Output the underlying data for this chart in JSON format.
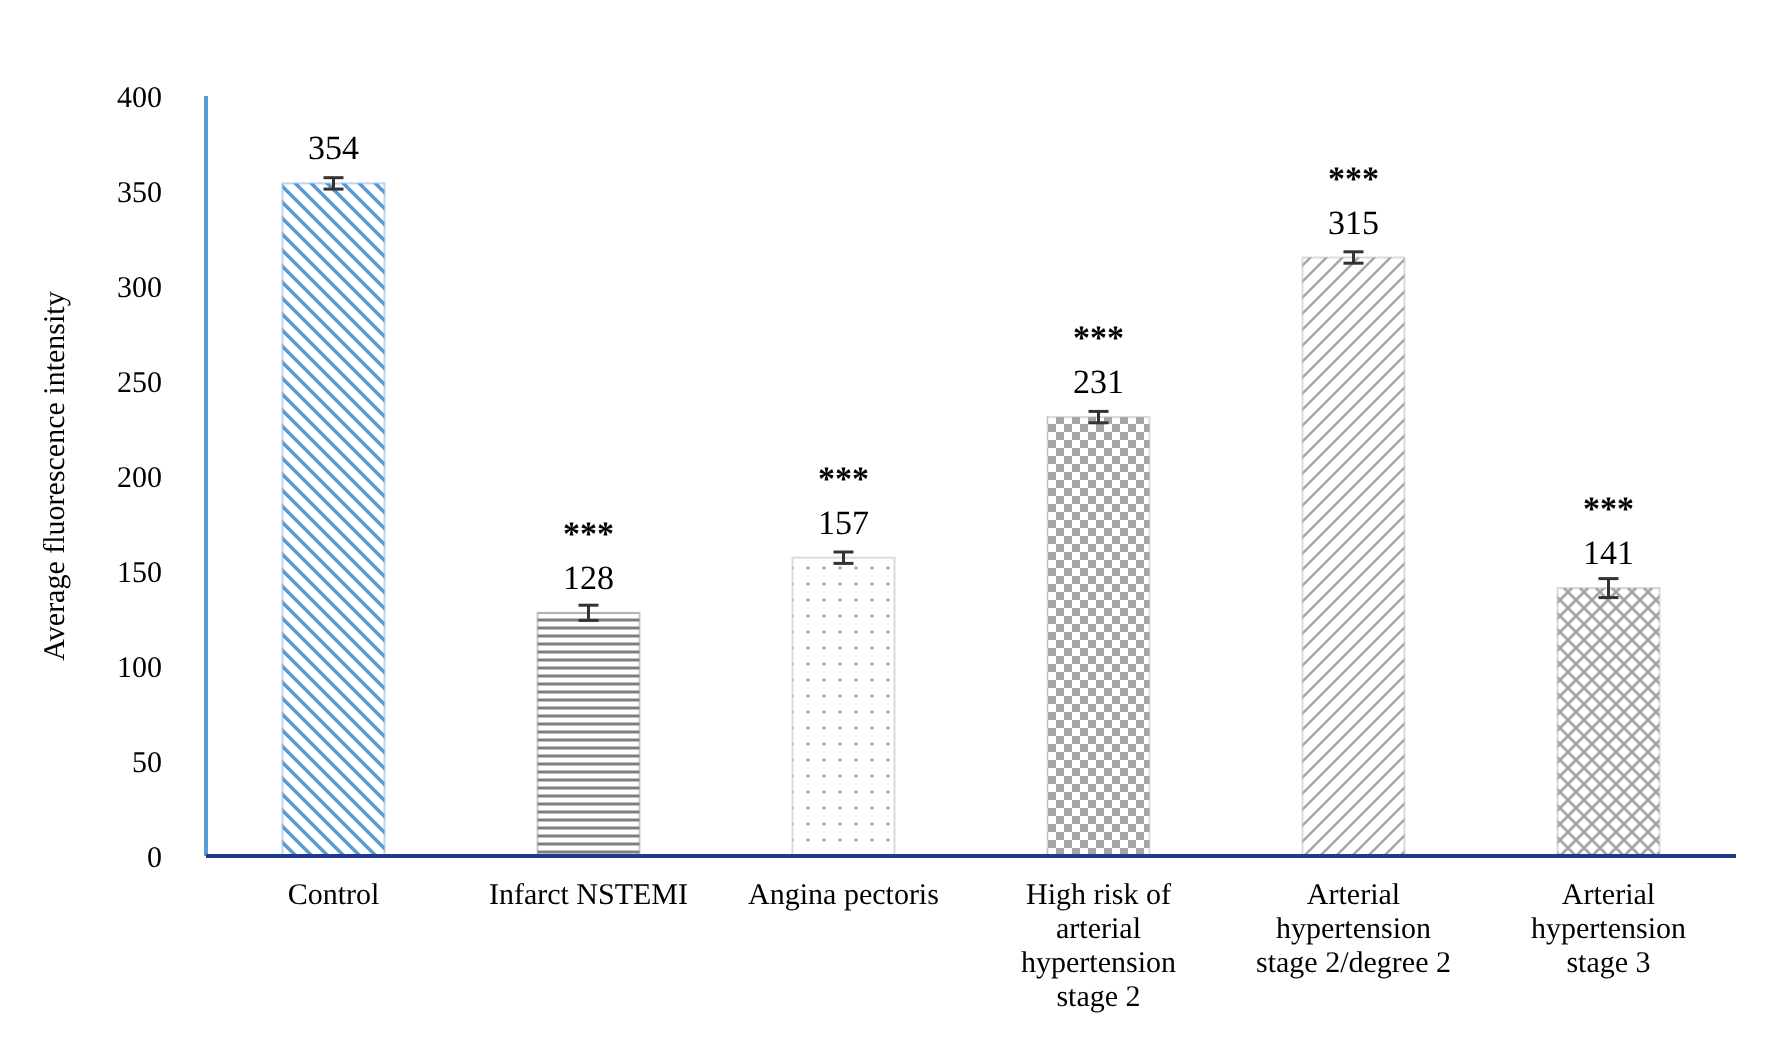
{
  "chart_data": {
    "type": "bar",
    "ylabel": "Average fluorescence intensity",
    "categories": [
      "Control",
      "Infarct NSTEMI",
      "Angina pectoris",
      "High risk of arterial hypertension stage 2",
      "Arterial hypertension stage 2/degree 2",
      "Arterial hypertension stage 3"
    ],
    "values": [
      354,
      128,
      157,
      231,
      315,
      141
    ],
    "errors": [
      3,
      4,
      3,
      3,
      3,
      5
    ],
    "colors": [
      "#5b9bd5",
      "#7f7f7f",
      "#a6a6a6",
      "#a6a6a6",
      "#a6a6a6",
      "#a6a6a6"
    ],
    "data_labels": true,
    "ylim": [
      0,
      400
    ],
    "yticks": [
      0,
      50,
      100,
      150,
      200,
      250,
      300,
      350,
      400
    ],
    "grid": false,
    "annotations": [
      {
        "text": "***",
        "x": "Infarct NSTEMI",
        "y": 128
      },
      {
        "text": "***",
        "x": "Angina pectoris",
        "y": 157
      },
      {
        "text": "***",
        "x": "High risk of arterial hypertension stage 2",
        "y": 231
      },
      {
        "text": "***",
        "x": "Arterial hypertension stage 2/degree 2",
        "y": 315
      },
      {
        "text": "***",
        "x": "Arterial hypertension stage 3",
        "y": 141
      }
    ]
  }
}
